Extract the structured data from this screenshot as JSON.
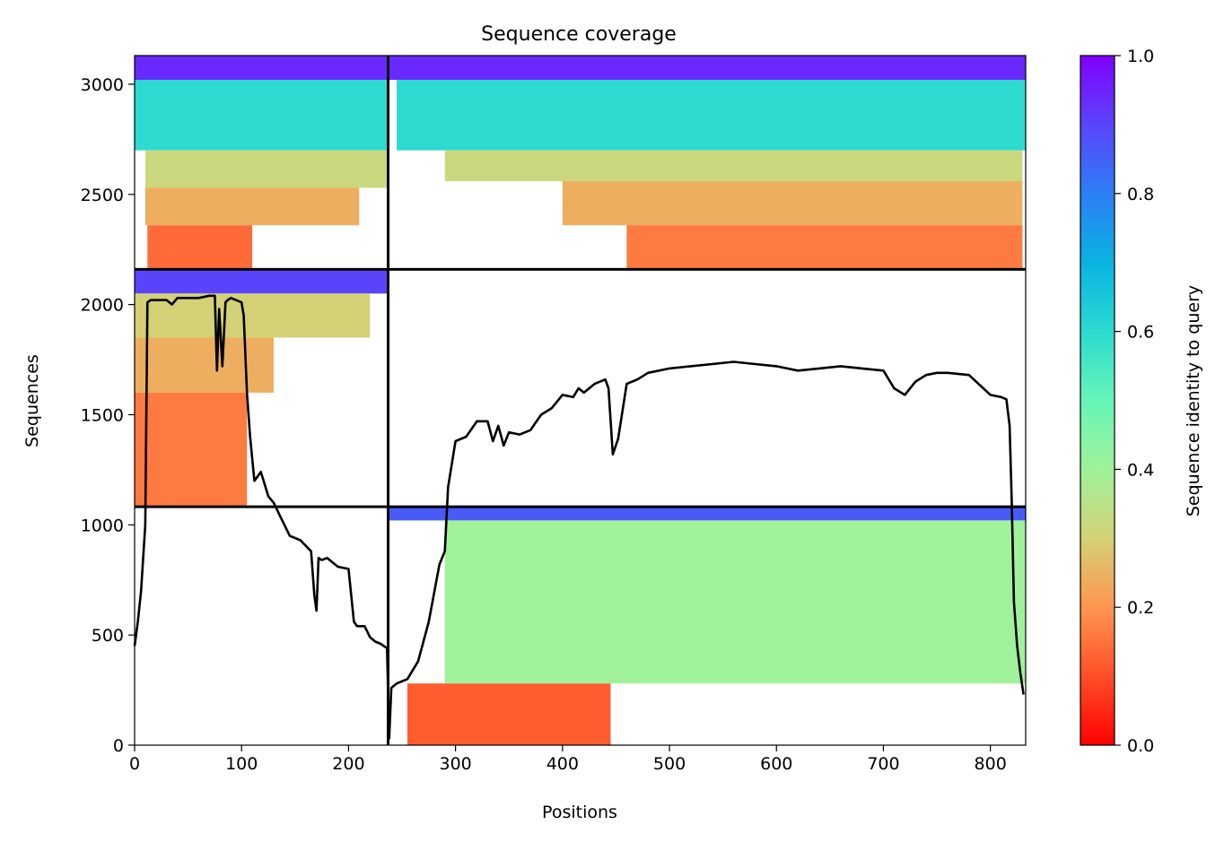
{
  "chart_data": {
    "type": "heatmap",
    "title": "Sequence coverage",
    "xlabel": "Positions",
    "ylabel": "Sequences",
    "xlim": [
      0,
      833
    ],
    "ylim": [
      0,
      3130
    ],
    "xticks": [
      0,
      100,
      200,
      300,
      400,
      500,
      600,
      700,
      800
    ],
    "yticks": [
      0,
      500,
      1000,
      1500,
      2000,
      2500,
      3000
    ],
    "colorbar": {
      "label": "Sequence identity to query",
      "range": [
        0,
        1
      ],
      "ticks": [
        "0.0",
        "0.2",
        "0.4",
        "0.6",
        "0.8",
        "1.0"
      ],
      "colormap": "rainbow_r"
    },
    "domain_boundaries": {
      "x": 237,
      "y": [
        1082,
        2160
      ]
    },
    "coverage_blocks": [
      {
        "x0": 0,
        "x1": 237,
        "y0": 3020,
        "y1": 3130,
        "id": 0.94
      },
      {
        "x0": 0,
        "x1": 237,
        "y0": 2700,
        "y1": 3020,
        "id": 0.6
      },
      {
        "x0": 10,
        "x1": 237,
        "y0": 2530,
        "y1": 2700,
        "id": 0.32
      },
      {
        "x0": 10,
        "x1": 210,
        "y0": 2360,
        "y1": 2530,
        "id": 0.24
      },
      {
        "x0": 12,
        "x1": 110,
        "y0": 2160,
        "y1": 2360,
        "id": 0.14
      },
      {
        "x0": 0,
        "x1": 237,
        "y0": 2050,
        "y1": 2160,
        "id": 0.9
      },
      {
        "x0": 0,
        "x1": 220,
        "y0": 1850,
        "y1": 2050,
        "id": 0.3
      },
      {
        "x0": 0,
        "x1": 130,
        "y0": 1600,
        "y1": 1850,
        "id": 0.24
      },
      {
        "x0": 0,
        "x1": 105,
        "y0": 1082,
        "y1": 1600,
        "id": 0.16
      },
      {
        "x0": 237,
        "x1": 833,
        "y0": 3020,
        "y1": 3130,
        "id": 0.94
      },
      {
        "x0": 245,
        "x1": 833,
        "y0": 2700,
        "y1": 3020,
        "id": 0.6
      },
      {
        "x0": 290,
        "x1": 830,
        "y0": 2560,
        "y1": 2700,
        "id": 0.32
      },
      {
        "x0": 400,
        "x1": 830,
        "y0": 2360,
        "y1": 2560,
        "id": 0.24
      },
      {
        "x0": 460,
        "x1": 830,
        "y0": 2160,
        "y1": 2360,
        "id": 0.16
      },
      {
        "x0": 237,
        "x1": 833,
        "y0": 1020,
        "y1": 1082,
        "id": 0.86
      },
      {
        "x0": 290,
        "x1": 833,
        "y0": 280,
        "y1": 1020,
        "id": 0.4
      },
      {
        "x0": 255,
        "x1": 445,
        "y0": 0,
        "y1": 280,
        "id": 0.12
      }
    ],
    "series": [
      {
        "type": "line",
        "x": [
          0,
          3,
          6,
          10,
          12,
          15,
          20,
          30,
          35,
          40,
          60,
          70,
          75,
          77,
          79,
          82,
          85,
          87,
          90,
          100,
          102,
          105,
          108,
          112,
          118,
          125,
          130,
          135,
          140,
          145,
          155,
          165,
          168,
          170,
          172,
          175,
          180,
          185,
          190,
          200,
          205,
          208,
          215,
          220,
          225,
          230,
          236,
          238,
          240,
          245,
          255,
          265,
          275,
          285,
          290,
          293,
          300,
          310,
          320,
          330,
          335,
          340,
          345,
          350,
          360,
          370,
          380,
          390,
          400,
          410,
          415,
          420,
          430,
          440,
          443,
          447,
          452,
          460,
          470,
          480,
          500,
          520,
          540,
          560,
          580,
          600,
          620,
          640,
          660,
          680,
          700,
          710,
          720,
          730,
          740,
          750,
          760,
          780,
          800,
          810,
          815,
          818,
          820,
          822,
          825,
          828,
          831
        ],
        "y": [
          450,
          560,
          700,
          1000,
          2010,
          2020,
          2020,
          2020,
          2000,
          2030,
          2030,
          2040,
          2040,
          1700,
          1980,
          1720,
          2010,
          2020,
          2030,
          2010,
          1950,
          1600,
          1400,
          1200,
          1240,
          1130,
          1100,
          1050,
          1000,
          950,
          930,
          880,
          680,
          610,
          850,
          840,
          850,
          830,
          810,
          800,
          560,
          540,
          540,
          490,
          470,
          460,
          440,
          30,
          260,
          280,
          300,
          380,
          560,
          820,
          880,
          1170,
          1380,
          1400,
          1470,
          1470,
          1380,
          1450,
          1360,
          1420,
          1410,
          1430,
          1500,
          1530,
          1590,
          1580,
          1620,
          1600,
          1640,
          1660,
          1620,
          1320,
          1390,
          1640,
          1660,
          1690,
          1710,
          1720,
          1730,
          1740,
          1730,
          1720,
          1700,
          1710,
          1720,
          1710,
          1700,
          1620,
          1590,
          1650,
          1680,
          1690,
          1690,
          1680,
          1590,
          1580,
          1570,
          1450,
          1100,
          650,
          450,
          330,
          230
        ]
      }
    ]
  }
}
